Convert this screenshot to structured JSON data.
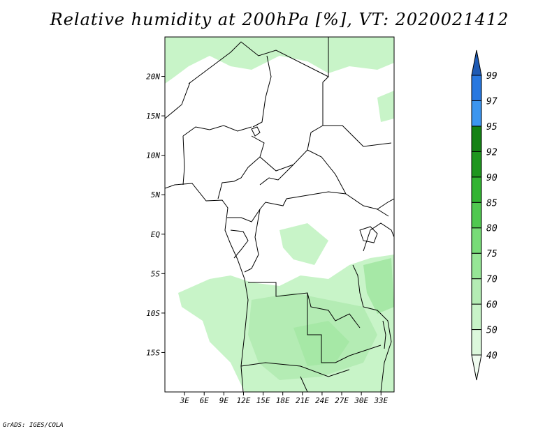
{
  "title": "Relative humidity at 200hPa [%], VT: 2020021412",
  "credit": "GrADS: IGES/COLA",
  "map": {
    "lon_range": [
      0,
      35
    ],
    "lat_range": [
      -20,
      25
    ],
    "lat_ticks": [
      {
        "lat": 20,
        "label": "20N"
      },
      {
        "lat": 15,
        "label": "15N"
      },
      {
        "lat": 10,
        "label": "10N"
      },
      {
        "lat": 5,
        "label": "5N"
      },
      {
        "lat": 0,
        "label": "EQ"
      },
      {
        "lat": -5,
        "label": "5S"
      },
      {
        "lat": -10,
        "label": "10S"
      },
      {
        "lat": -15,
        "label": "15S"
      }
    ],
    "lon_ticks": [
      {
        "lon": 3,
        "label": "3E"
      },
      {
        "lon": 6,
        "label": "6E"
      },
      {
        "lon": 9,
        "label": "9E"
      },
      {
        "lon": 12,
        "label": "12E"
      },
      {
        "lon": 15,
        "label": "15E"
      },
      {
        "lon": 18,
        "label": "18E"
      },
      {
        "lon": 21,
        "label": "21E"
      },
      {
        "lon": 24,
        "label": "24E"
      },
      {
        "lon": 27,
        "label": "27E"
      },
      {
        "lon": 30,
        "label": "30E"
      },
      {
        "lon": 33,
        "label": "33E"
      }
    ]
  },
  "colorbar": {
    "levels": [
      "40",
      "50",
      "60",
      "70",
      "75",
      "80",
      "85",
      "90",
      "92",
      "95",
      "97",
      "99"
    ],
    "colors": [
      "#f0fcf0",
      "#dcf8dc",
      "#c8f4c8",
      "#b4ecb4",
      "#96e696",
      "#78dc78",
      "#50c850",
      "#32b432",
      "#1e961e",
      "#148214",
      "#3c96f0",
      "#2878e0",
      "#1e5ab4"
    ]
  }
}
